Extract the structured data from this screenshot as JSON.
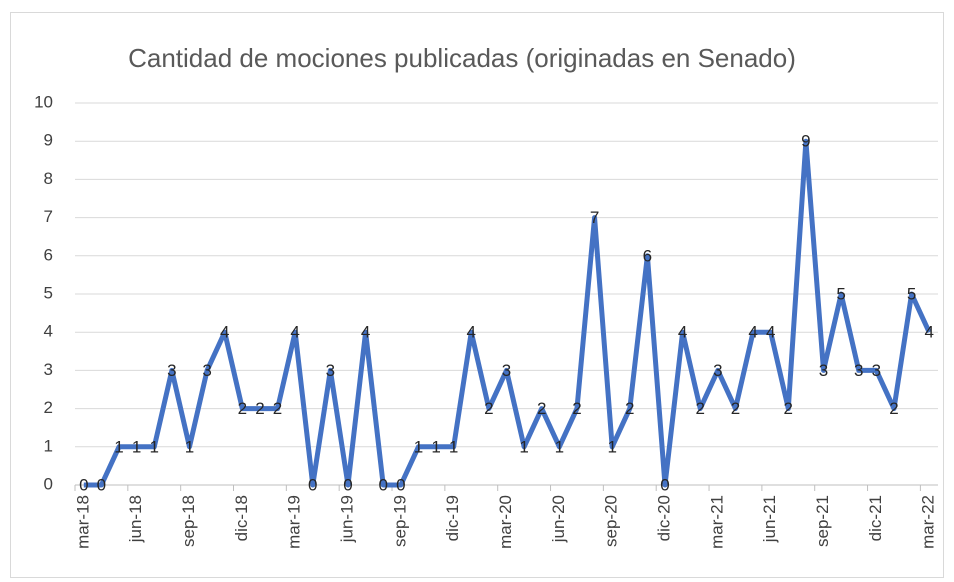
{
  "chart_data": {
    "type": "line",
    "title": "Cantidad de mociones publicadas (originadas en Senado)",
    "categories": [
      "mar-18",
      null,
      null,
      "jun-18",
      null,
      null,
      "sep-18",
      null,
      null,
      "dic-18",
      null,
      null,
      "mar-19",
      null,
      null,
      "jun-19",
      null,
      null,
      "sep-19",
      null,
      null,
      "dic-19",
      null,
      null,
      "mar-20",
      null,
      null,
      "jun-20",
      null,
      null,
      "sep-20",
      null,
      null,
      "dic-20",
      null,
      null,
      "mar-21",
      null,
      null,
      "jun-21",
      null,
      null,
      "sep-21",
      null,
      null,
      "dic-21",
      null,
      null,
      "mar-22"
    ],
    "values": [
      0,
      0,
      1,
      1,
      1,
      3,
      1,
      3,
      4,
      2,
      2,
      2,
      4,
      0,
      3,
      0,
      4,
      0,
      0,
      1,
      1,
      1,
      4,
      2,
      3,
      1,
      2,
      1,
      2,
      7,
      1,
      2,
      6,
      0,
      4,
      2,
      3,
      2,
      4,
      4,
      2,
      9,
      3,
      5,
      3,
      3,
      2,
      5,
      4
    ],
    "color": "#4472c4",
    "ylim": [
      0,
      10
    ],
    "yticks": [
      0,
      1,
      2,
      3,
      4,
      5,
      6,
      7,
      8,
      9,
      10
    ],
    "grid": true
  }
}
